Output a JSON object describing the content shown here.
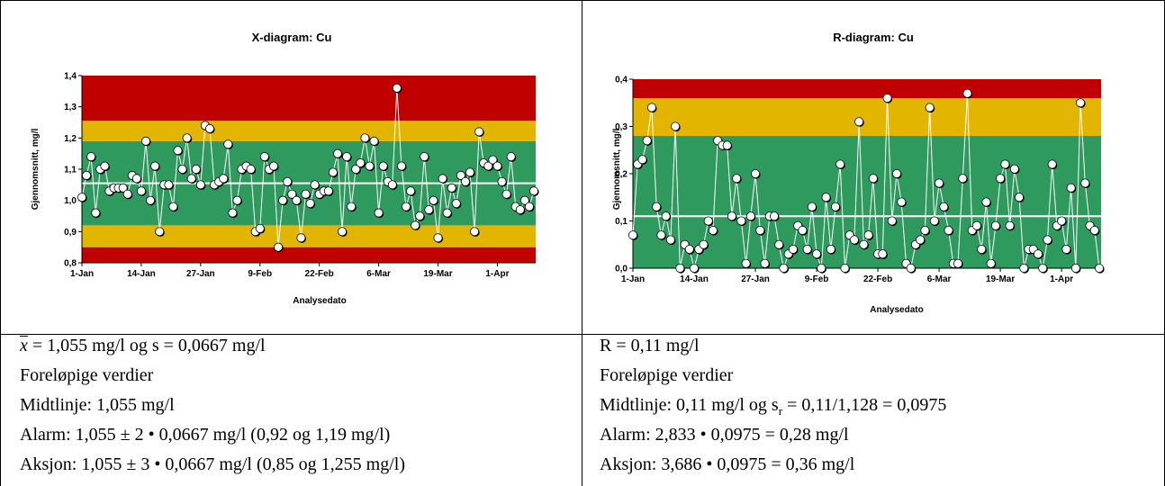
{
  "charts": [
    {
      "id": "x",
      "title": "X-diagram: Cu",
      "xlabel": "Analysedato",
      "ylabel": "Gjennomsnitt, mg/l",
      "ytick_labels": [
        "0,8",
        "0,9",
        "1,0",
        "1,1",
        "1,2",
        "1,3",
        "1,4"
      ],
      "xtick_labels": [
        "1-Jan",
        "14-Jan",
        "27-Jan",
        "9-Feb",
        "22-Feb",
        "6-Mar",
        "19-Mar",
        "1-Apr"
      ]
    },
    {
      "id": "r",
      "title": "R-diagram: Cu",
      "xlabel": "Analysedato",
      "ylabel": "Gjennomsnitt, mg/l",
      "ytick_labels": [
        "0,0",
        "0,1",
        "0,2",
        "0,3",
        "0,4"
      ],
      "xtick_labels": [
        "1-Jan",
        "14-Jan",
        "27-Jan",
        "9-Feb",
        "22-Feb",
        "6-Mar",
        "19-Mar",
        "1-Apr"
      ]
    }
  ],
  "chart_data": [
    {
      "type": "line",
      "title": "X-diagram: Cu",
      "xlabel": "Analysedato",
      "ylabel": "Gjennomsnitt, mg/l",
      "ylim": [
        0.8,
        1.4
      ],
      "yticks": [
        0.8,
        0.9,
        1.0,
        1.1,
        1.2,
        1.3,
        1.4
      ],
      "xticks": [
        "1-Jan",
        "14-Jan",
        "27-Jan",
        "9-Feb",
        "22-Feb",
        "6-Mar",
        "19-Mar",
        "1-Apr"
      ],
      "center_line": 1.055,
      "zones": [
        {
          "from": 0.8,
          "to": 0.85,
          "color": "#c00000"
        },
        {
          "from": 0.85,
          "to": 0.92,
          "color": "#e1b500"
        },
        {
          "from": 0.92,
          "to": 1.19,
          "color": "#2e9a5e"
        },
        {
          "from": 1.19,
          "to": 1.255,
          "color": "#e1b500"
        },
        {
          "from": 1.255,
          "to": 1.4,
          "color": "#c00000"
        }
      ],
      "series": [
        {
          "values": [
            1.01,
            1.08,
            1.14,
            0.96,
            1.1,
            1.11,
            1.03,
            1.04,
            1.04,
            1.04,
            1.02,
            1.08,
            1.07,
            1.03,
            1.19,
            1.0,
            1.11,
            0.9,
            1.05,
            1.05,
            0.98,
            1.16,
            1.1,
            1.2,
            1.07,
            1.1,
            1.05,
            1.24,
            1.23,
            1.05,
            1.06,
            1.07,
            1.18,
            0.96,
            1.0,
            1.1,
            1.11,
            1.1,
            0.9,
            0.91,
            1.14,
            1.1,
            1.11,
            0.85,
            1.0,
            1.06,
            1.02,
            1.0,
            0.88,
            1.02,
            0.99,
            1.05,
            1.02,
            1.03,
            1.03,
            1.09,
            1.15,
            0.9,
            1.14,
            0.98,
            1.1,
            1.12,
            1.2,
            1.11,
            1.19,
            0.96,
            1.11,
            1.06,
            1.05,
            1.36,
            1.11,
            0.98,
            1.03,
            0.92,
            0.95,
            1.14,
            0.97,
            1.0,
            0.88,
            1.07,
            0.96,
            1.04,
            0.99,
            1.08,
            1.06,
            1.09,
            0.9,
            1.22,
            1.12,
            1.11,
            1.13,
            1.11,
            1.06,
            1.02,
            1.14,
            0.98,
            0.97,
            1.0,
            0.98,
            1.03
          ]
        }
      ]
    },
    {
      "type": "line",
      "title": "R-diagram: Cu",
      "xlabel": "Analysedato",
      "ylabel": "Gjennomsnitt, mg/l",
      "ylim": [
        0.0,
        0.4
      ],
      "yticks": [
        0.0,
        0.1,
        0.2,
        0.3,
        0.4
      ],
      "xticks": [
        "1-Jan",
        "14-Jan",
        "27-Jan",
        "9-Feb",
        "22-Feb",
        "6-Mar",
        "19-Mar",
        "1-Apr"
      ],
      "center_line": 0.11,
      "zones": [
        {
          "from": 0.0,
          "to": 0.28,
          "color": "#2e9a5e"
        },
        {
          "from": 0.28,
          "to": 0.36,
          "color": "#e1b500"
        },
        {
          "from": 0.36,
          "to": 0.4,
          "color": "#c00000"
        }
      ],
      "series": [
        {
          "values": [
            0.07,
            0.22,
            0.23,
            0.27,
            0.34,
            0.13,
            0.07,
            0.11,
            0.06,
            0.3,
            0.0,
            0.05,
            0.04,
            0.0,
            0.04,
            0.05,
            0.1,
            0.08,
            0.27,
            0.26,
            0.26,
            0.11,
            0.19,
            0.1,
            0.01,
            0.11,
            0.2,
            0.08,
            0.01,
            0.11,
            0.11,
            0.05,
            0.0,
            0.03,
            0.04,
            0.09,
            0.08,
            0.04,
            0.13,
            0.03,
            0.0,
            0.15,
            0.04,
            0.13,
            0.22,
            0.0,
            0.07,
            0.06,
            0.31,
            0.05,
            0.07,
            0.19,
            0.03,
            0.03,
            0.36,
            0.1,
            0.2,
            0.14,
            0.01,
            0.0,
            0.05,
            0.06,
            0.08,
            0.34,
            0.1,
            0.18,
            0.13,
            0.08,
            0.01,
            0.01,
            0.19,
            0.37,
            0.08,
            0.09,
            0.04,
            0.14,
            0.01,
            0.09,
            0.19,
            0.22,
            0.09,
            0.21,
            0.15,
            0.0,
            0.04,
            0.04,
            0.03,
            0.0,
            0.06,
            0.22,
            0.09,
            0.1,
            0.04,
            0.17,
            0.0,
            0.35,
            0.18,
            0.09,
            0.08,
            0.0
          ]
        }
      ]
    }
  ],
  "left_text": {
    "xbar_symbol": "x",
    "line1": " = 1,055 mg/l og s = 0,0667 mg/l",
    "line2": "Foreløpige verdier",
    "line3": "Midtlinje: 1,055 mg/l",
    "line4": "Alarm: 1,055 ± 2 • 0,0667 mg/l (0,92 og 1,19 mg/l)",
    "line5": "Aksjon: 1,055 ± 3 • 0,0667 mg/l (0,85 og 1,255 mg/l)"
  },
  "right_text": {
    "line1": "R = 0,11 mg/l",
    "line2": "Foreløpige verdier",
    "line3a": "Midtlinje: 0,11 mg/l og s",
    "line3_sub": "r",
    "line3b": " = 0,11/1,128 = 0,0975",
    "line4": "Alarm: 2,833 • 0,0975 = 0,28 mg/l",
    "line5": "Aksjon: 3,686 • 0,0975 = 0,36 mg/l"
  }
}
